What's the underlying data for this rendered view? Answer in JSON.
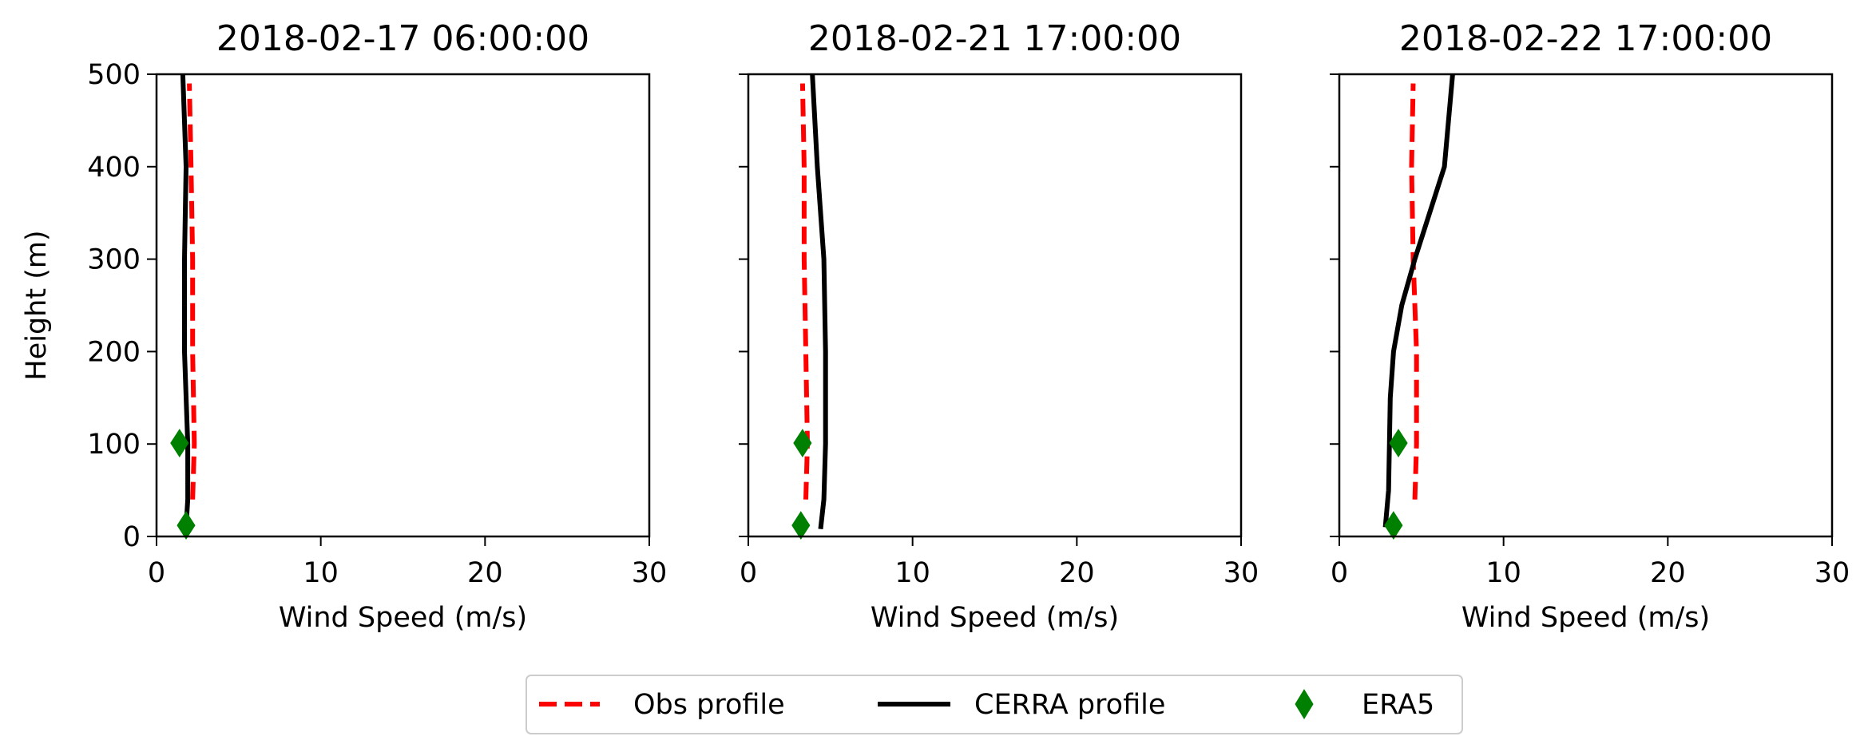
{
  "chart_data": {
    "type": "line",
    "shared": {
      "xlabel": "Wind Speed (m/s)",
      "ylabel": "Height (m)",
      "xlim": [
        0,
        30
      ],
      "ylim": [
        0,
        500
      ],
      "xticks": [
        0,
        10,
        20,
        30
      ],
      "yticks": [
        0,
        100,
        200,
        300,
        400,
        500
      ],
      "grid": false,
      "legend_placement": "bottom-center"
    },
    "legend": [
      {
        "name": "Obs profile",
        "style": "dashed",
        "color": "#ff0000"
      },
      {
        "name": "CERRA profile",
        "style": "solid",
        "color": "#000000"
      },
      {
        "name": "ERA5",
        "style": "diamond-marker",
        "color": "#008000"
      }
    ],
    "panels": [
      {
        "title": "2018-02-17 06:00:00",
        "series": [
          {
            "name": "Obs profile",
            "points": [
              [
                2.2,
                40
              ],
              [
                2.3,
                100
              ],
              [
                2.2,
                200
              ],
              [
                2.2,
                300
              ],
              [
                2.1,
                400
              ],
              [
                2.0,
                490
              ]
            ]
          },
          {
            "name": "CERRA profile",
            "points": [
              [
                1.8,
                10
              ],
              [
                1.9,
                40
              ],
              [
                1.9,
                100
              ],
              [
                1.7,
                200
              ],
              [
                1.7,
                300
              ],
              [
                1.8,
                400
              ],
              [
                1.6,
                500
              ]
            ]
          },
          {
            "name": "ERA5",
            "points": [
              [
                1.8,
                12
              ],
              [
                1.4,
                101
              ]
            ]
          }
        ]
      },
      {
        "title": "2018-02-21 17:00:00",
        "series": [
          {
            "name": "Obs profile",
            "points": [
              [
                3.5,
                40
              ],
              [
                3.6,
                100
              ],
              [
                3.5,
                200
              ],
              [
                3.4,
                300
              ],
              [
                3.4,
                400
              ],
              [
                3.3,
                490
              ]
            ]
          },
          {
            "name": "CERRA profile",
            "points": [
              [
                4.4,
                8
              ],
              [
                4.6,
                40
              ],
              [
                4.7,
                100
              ],
              [
                4.7,
                200
              ],
              [
                4.6,
                300
              ],
              [
                4.2,
                400
              ],
              [
                3.9,
                500
              ]
            ]
          },
          {
            "name": "ERA5",
            "points": [
              [
                3.2,
                12
              ],
              [
                3.3,
                101
              ]
            ]
          }
        ]
      },
      {
        "title": "2018-02-22 17:00:00",
        "series": [
          {
            "name": "Obs profile",
            "points": [
              [
                4.6,
                40
              ],
              [
                4.7,
                100
              ],
              [
                4.7,
                200
              ],
              [
                4.5,
                300
              ],
              [
                4.4,
                400
              ],
              [
                4.5,
                490
              ]
            ]
          },
          {
            "name": "CERRA profile",
            "points": [
              [
                2.8,
                10
              ],
              [
                3.0,
                50
              ],
              [
                3.1,
                150
              ],
              [
                3.3,
                200
              ],
              [
                3.8,
                250
              ],
              [
                4.6,
                300
              ],
              [
                5.5,
                350
              ],
              [
                6.4,
                400
              ],
              [
                6.9,
                500
              ]
            ]
          },
          {
            "name": "ERA5",
            "points": [
              [
                3.3,
                12
              ],
              [
                3.6,
                101
              ]
            ]
          }
        ]
      }
    ]
  }
}
